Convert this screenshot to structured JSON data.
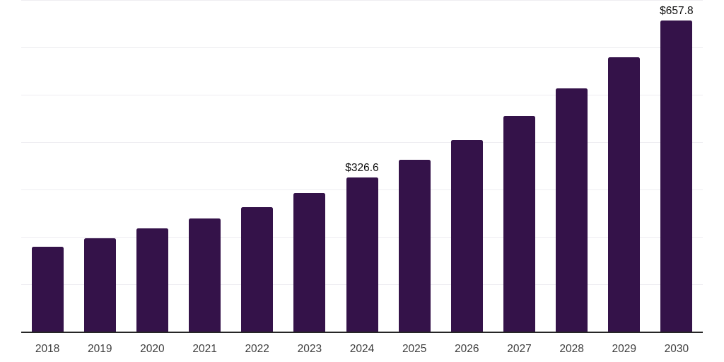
{
  "chart_data": {
    "type": "bar",
    "title": "",
    "xlabel": "",
    "ylabel": "",
    "categories": [
      "2018",
      "2019",
      "2020",
      "2021",
      "2022",
      "2023",
      "2024",
      "2025",
      "2026",
      "2027",
      "2028",
      "2029",
      "2030"
    ],
    "values": [
      181.2,
      199.0,
      218.9,
      239.9,
      264.6,
      293.6,
      326.6,
      364.2,
      406.4,
      456.7,
      514.5,
      581.0,
      657.8
    ],
    "data_labels": [
      "",
      "",
      "",
      "",
      "",
      "",
      "$326.6",
      "",
      "",
      "",
      "",
      "",
      "$657.8"
    ],
    "ylim": [
      0,
      700
    ],
    "gridline_interval": 100,
    "grid": true,
    "legend": false,
    "colors": {
      "bar": "#341249",
      "axis": "#262626",
      "gridline": "#eeedf1",
      "tick_label": "#3d3d3d",
      "data_label": "#0d0d0d",
      "background": "#ffffff"
    }
  }
}
